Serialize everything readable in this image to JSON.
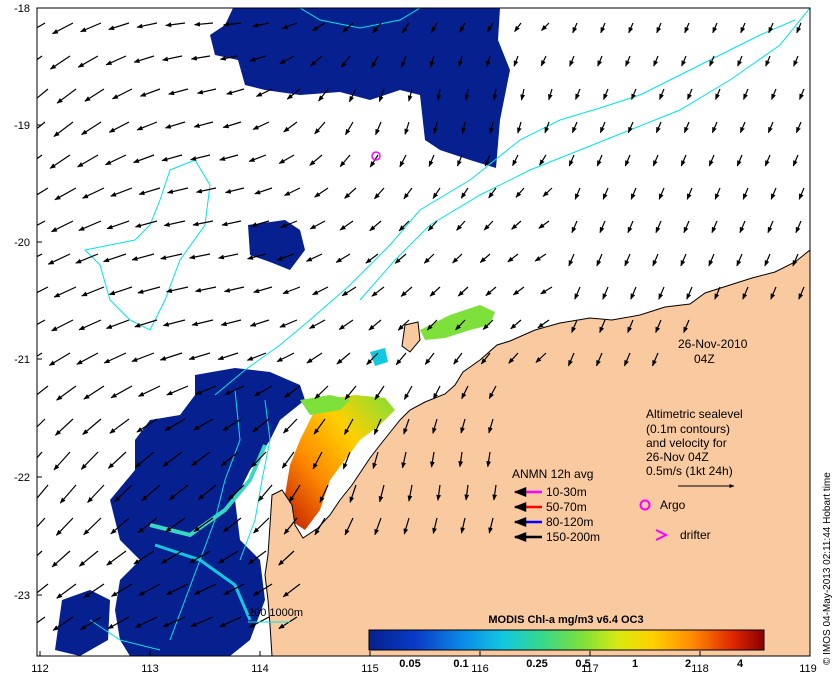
{
  "map": {
    "lon_ticks": [
      "112",
      "113",
      "114",
      "115",
      "116",
      "117",
      "118",
      "119"
    ],
    "lat_ticks": [
      "-18",
      "-19",
      "-20",
      "-21",
      "-22",
      "-23"
    ],
    "date": "26-Nov-2010",
    "time": "04Z",
    "scale_label": "200  1000m",
    "credit": "© IMOS 04-May-2013 02:11:44 Hobart time"
  },
  "velocity_legend": {
    "lines": [
      "Altimetric sealevel",
      "(0.1m contours)",
      "and velocity for",
      "26-Nov 04Z",
      "0.5m/s (1kt 24h)"
    ]
  },
  "anmn_legend": {
    "title": "ANMN 12h avg",
    "items": [
      {
        "label": "10-30m",
        "color": "#ff00ff"
      },
      {
        "label": "50-70m",
        "color": "#ff0000"
      },
      {
        "label": "80-120m",
        "color": "#0000ff"
      },
      {
        "label": "150-200m",
        "color": "#000000"
      }
    ],
    "argo": "Argo",
    "drifter": "drifter"
  },
  "colorbar": {
    "title": "MODIS Chl-a mg/m3 v6.4 OC3",
    "ticks": [
      "0.05",
      "0.1",
      "0.25",
      "0.5",
      "1",
      "2",
      "4"
    ]
  },
  "colors": {
    "land": "#f9c9a0",
    "deep_chl": "#06208f",
    "contour": "#00e5e5"
  }
}
